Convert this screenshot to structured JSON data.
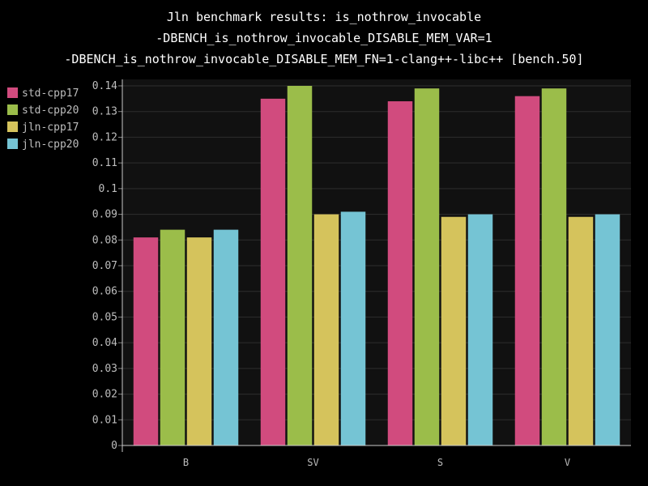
{
  "chart_data": {
    "type": "bar",
    "title": [
      "Jln benchmark results: is_nothrow_invocable",
      "-DBENCH_is_nothrow_invocable_DISABLE_MEM_VAR=1",
      "-DBENCH_is_nothrow_invocable_DISABLE_MEM_FN=1-clang++-libc++ [bench.50]"
    ],
    "categories": [
      "B",
      "SV",
      "S",
      "V"
    ],
    "series": [
      {
        "name": "std-cpp17",
        "color": "#d14b7e",
        "values": [
          0.081,
          0.135,
          0.134,
          0.136
        ]
      },
      {
        "name": "std-cpp20",
        "color": "#9bbd4a",
        "values": [
          0.084,
          0.14,
          0.139,
          0.139
        ]
      },
      {
        "name": "jln-cpp17",
        "color": "#d5c35c",
        "values": [
          0.081,
          0.09,
          0.089,
          0.089
        ]
      },
      {
        "name": "jln-cpp20",
        "color": "#75c4d4",
        "values": [
          0.084,
          0.091,
          0.09,
          0.09
        ]
      }
    ],
    "ylim": [
      0,
      0.14
    ],
    "yticks": [
      "0",
      "0.01",
      "0.02",
      "0.03",
      "0.04",
      "0.05",
      "0.06",
      "0.07",
      "0.08",
      "0.09",
      "0.1",
      "0.11",
      "0.12",
      "0.13",
      "0.14"
    ],
    "grid": true,
    "legend_position": "top-left",
    "background": "#000000",
    "plot_background": "#111111",
    "grid_color": "#2e2e2e"
  }
}
